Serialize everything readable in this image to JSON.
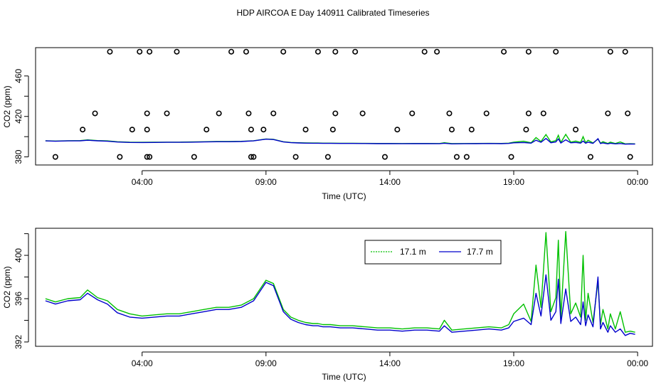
{
  "title": "HDP AIRCOA E  Day 140911  Calibrated Timeseries",
  "chart_data": [
    {
      "type": "line",
      "xlabel": "Time (UTC)",
      "ylabel": "CO2 (ppm)",
      "xlim": [
        -1.3,
        23.6
      ],
      "ylim": [
        372,
        488
      ],
      "x_ticks": [
        {
          "value": 3.0,
          "label": "04:00"
        },
        {
          "value": 8.0,
          "label": "09:00"
        },
        {
          "value": 13.0,
          "label": "14:00"
        },
        {
          "value": 18.0,
          "label": "19:00"
        },
        {
          "value": 23.0,
          "label": "00:00"
        }
      ],
      "y_ticks": [
        {
          "value": 380,
          "label": "380"
        },
        {
          "value": 420,
          "label": "420"
        },
        {
          "value": 460,
          "label": "460"
        }
      ],
      "y_ticks_minor": [
        400,
        440
      ],
      "points": {
        "marker": "open-circle",
        "x": [
          -0.5,
          0.6,
          1.1,
          1.7,
          2.1,
          2.6,
          2.9,
          3.2,
          3.2,
          3.2,
          3.3,
          3.3,
          4.0,
          4.4,
          5.1,
          5.6,
          6.1,
          6.6,
          7.2,
          7.3,
          7.4,
          7.4,
          7.5,
          7.9,
          8.3,
          8.7,
          9.2,
          9.6,
          10.1,
          10.5,
          10.7,
          10.8,
          10.8,
          11.6,
          11.9,
          12.8,
          13.3,
          13.9,
          14.4,
          14.9,
          15.4,
          15.5,
          15.7,
          16.1,
          16.3,
          16.9,
          17.6,
          17.9,
          18.5,
          18.6,
          18.6,
          19.2,
          19.7,
          20.5,
          21.1,
          21.8,
          21.9,
          22.5,
          22.6,
          22.7
        ],
        "y": [
          380,
          407,
          423,
          484,
          380,
          407,
          484,
          380,
          407,
          423,
          484,
          380,
          423,
          484,
          380,
          407,
          423,
          484,
          484,
          423,
          407,
          380,
          380,
          407,
          423,
          484,
          380,
          407,
          484,
          380,
          407,
          423,
          484,
          484,
          423,
          380,
          407,
          423,
          484,
          484,
          423,
          407,
          380,
          380,
          407,
          423,
          484,
          380,
          407,
          423,
          484,
          423,
          484,
          407,
          380,
          423,
          484,
          484,
          423,
          380
        ]
      },
      "series": [
        {
          "name": "17.1 m",
          "color": "#00c000"
        },
        {
          "name": "17.7 m",
          "color": "#0000cc"
        }
      ]
    },
    {
      "type": "line",
      "xlabel": "Time (UTC)",
      "ylabel": "CO2 (ppm)",
      "xlim": [
        -1.3,
        23.6
      ],
      "ylim": [
        391.6,
        402.5
      ],
      "x_ticks": [
        {
          "value": 3.0,
          "label": "04:00"
        },
        {
          "value": 8.0,
          "label": "09:00"
        },
        {
          "value": 13.0,
          "label": "14:00"
        },
        {
          "value": 18.0,
          "label": "19:00"
        },
        {
          "value": 23.0,
          "label": "00:00"
        }
      ],
      "y_ticks": [
        {
          "value": 392,
          "label": "392"
        },
        {
          "value": 396,
          "label": "396"
        },
        {
          "value": 400,
          "label": "400"
        }
      ],
      "y_ticks_minor": [
        394,
        398,
        402
      ],
      "legend": {
        "position": "top-right",
        "entries": [
          "17.1 m",
          "17.7 m"
        ]
      },
      "series": [
        {
          "name": "17.1 m",
          "color": "#00c000",
          "x": [
            -0.9,
            -0.5,
            0,
            0.5,
            0.8,
            1.2,
            1.6,
            2.0,
            2.5,
            3.0,
            3.5,
            4.0,
            4.5,
            5.0,
            5.5,
            6.0,
            6.5,
            7.0,
            7.5,
            8.0,
            8.3,
            8.7,
            9.0,
            9.3,
            9.6,
            9.9,
            10.1,
            10.3,
            10.6,
            11.0,
            11.5,
            12.0,
            12.5,
            13.0,
            13.5,
            14.0,
            14.5,
            15.0,
            15.2,
            15.5,
            16.0,
            16.5,
            17.0,
            17.5,
            17.8,
            18.0,
            18.4,
            18.7,
            18.9,
            19.1,
            19.3,
            19.5,
            19.7,
            19.8,
            19.9,
            20.1,
            20.3,
            20.5,
            20.7,
            20.8,
            20.9,
            21.0,
            21.2,
            21.4,
            21.5,
            21.6,
            21.8,
            21.9,
            22.1,
            22.3,
            22.5,
            22.7,
            22.9
          ],
          "y": [
            396.0,
            395.7,
            396.0,
            396.1,
            396.8,
            396.1,
            395.8,
            395.0,
            394.6,
            394.4,
            394.5,
            394.6,
            394.6,
            394.8,
            395.0,
            395.2,
            395.2,
            395.4,
            396.0,
            397.7,
            397.4,
            395.0,
            394.3,
            394.0,
            393.8,
            393.7,
            393.7,
            393.6,
            393.6,
            393.5,
            393.5,
            393.4,
            393.3,
            393.3,
            393.2,
            393.3,
            393.3,
            393.2,
            394.0,
            393.1,
            393.2,
            393.3,
            393.4,
            393.3,
            393.6,
            394.6,
            395.5,
            393.9,
            399.1,
            395.2,
            402.1,
            394.8,
            396.1,
            401.4,
            394.2,
            402.2,
            394.6,
            395.6,
            394.3,
            400.0,
            394.0,
            396.5,
            393.8,
            397.6,
            393.6,
            395.0,
            393.2,
            394.6,
            393.2,
            394.8,
            392.9,
            393.0,
            392.9
          ]
        },
        {
          "name": "17.7 m",
          "color": "#0000cc",
          "x": [
            -0.9,
            -0.5,
            0,
            0.5,
            0.8,
            1.2,
            1.6,
            2.0,
            2.5,
            3.0,
            3.5,
            4.0,
            4.5,
            5.0,
            5.5,
            6.0,
            6.5,
            7.0,
            7.5,
            8.0,
            8.3,
            8.7,
            9.0,
            9.3,
            9.6,
            9.9,
            10.1,
            10.3,
            10.6,
            11.0,
            11.5,
            12.0,
            12.5,
            13.0,
            13.5,
            14.0,
            14.5,
            15.0,
            15.2,
            15.5,
            16.0,
            16.5,
            17.0,
            17.5,
            17.8,
            18.0,
            18.4,
            18.7,
            18.9,
            19.1,
            19.3,
            19.5,
            19.7,
            19.8,
            19.9,
            20.1,
            20.3,
            20.5,
            20.7,
            20.8,
            20.9,
            21.0,
            21.2,
            21.4,
            21.5,
            21.6,
            21.8,
            21.9,
            22.1,
            22.3,
            22.5,
            22.7,
            22.9
          ],
          "y": [
            395.8,
            395.5,
            395.8,
            395.9,
            396.5,
            395.9,
            395.5,
            394.7,
            394.3,
            394.2,
            394.3,
            394.4,
            394.4,
            394.6,
            394.8,
            395.0,
            395.0,
            395.2,
            395.8,
            397.5,
            397.2,
            394.8,
            394.1,
            393.8,
            393.6,
            393.5,
            393.5,
            393.4,
            393.4,
            393.3,
            393.3,
            393.2,
            393.1,
            393.1,
            393.0,
            393.1,
            393.1,
            393.0,
            393.5,
            392.9,
            393.0,
            393.1,
            393.2,
            393.1,
            393.3,
            393.9,
            394.2,
            393.6,
            396.5,
            394.4,
            398.2,
            394.0,
            394.8,
            397.8,
            393.7,
            396.9,
            393.9,
            394.3,
            393.6,
            395.7,
            393.5,
            394.5,
            393.4,
            398.0,
            393.2,
            393.8,
            392.9,
            393.5,
            392.9,
            393.2,
            392.6,
            392.8,
            392.7
          ]
        }
      ]
    }
  ]
}
